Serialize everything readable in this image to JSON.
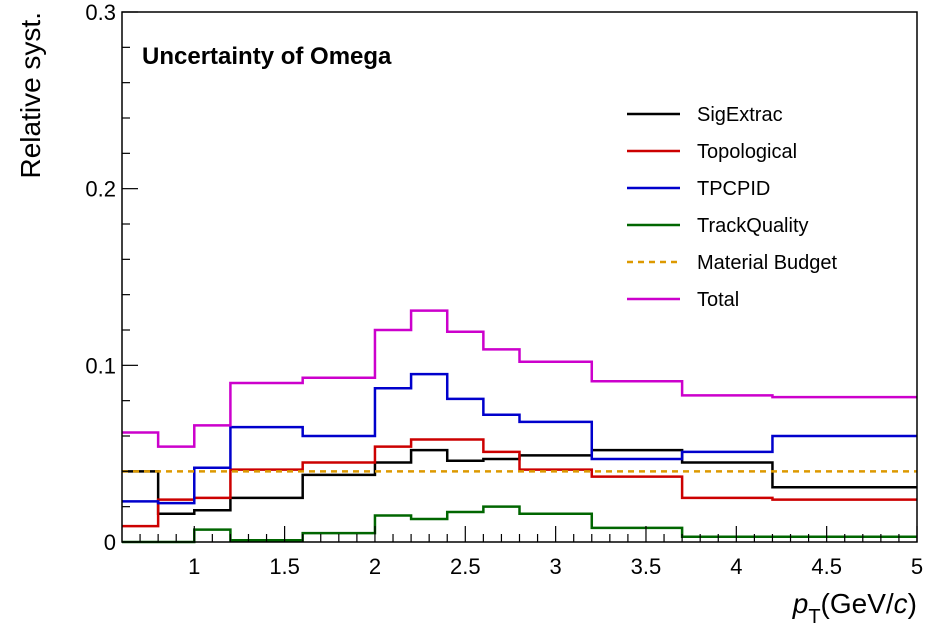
{
  "chart_data": {
    "type": "line",
    "style": "step-histogram",
    "title": "Uncertainty of Omega",
    "ylabel": "Relative syst.",
    "xlabel_main": "p",
    "xlabel_sub": "T",
    "xlabel_units_prefix": "(GeV/",
    "xlabel_units_italic": "c",
    "xlabel_units_suffix": ")",
    "xlim": [
      0.6,
      5.0
    ],
    "ylim": [
      0,
      0.3
    ],
    "x_ticks": [
      {
        "value": 1,
        "label": "1"
      },
      {
        "value": 1.5,
        "label": "1.5"
      },
      {
        "value": 2,
        "label": "2"
      },
      {
        "value": 2.5,
        "label": "2.5"
      },
      {
        "value": 3,
        "label": "3"
      },
      {
        "value": 3.5,
        "label": "3.5"
      },
      {
        "value": 4,
        "label": "4"
      },
      {
        "value": 4.5,
        "label": "4.5"
      },
      {
        "value": 5,
        "label": "5"
      }
    ],
    "y_ticks": [
      {
        "value": 0,
        "label": "0"
      },
      {
        "value": 0.1,
        "label": "0.1"
      },
      {
        "value": 0.2,
        "label": "0.2"
      },
      {
        "value": 0.3,
        "label": "0.3"
      }
    ],
    "bin_edges": [
      0.6,
      0.8,
      1.0,
      1.2,
      1.6,
      2.0,
      2.2,
      2.4,
      2.6,
      2.8,
      3.2,
      3.7,
      4.2,
      5.0
    ],
    "grid": false,
    "legend_position": "top-right",
    "series": [
      {
        "name": "SigExtrac",
        "color": "#000000",
        "dashed": false,
        "values": [
          0.04,
          0.016,
          0.018,
          0.025,
          0.038,
          0.045,
          0.052,
          0.046,
          0.047,
          0.049,
          0.052,
          0.045,
          0.031
        ]
      },
      {
        "name": "Topological",
        "color": "#cc0000",
        "dashed": false,
        "values": [
          0.009,
          0.024,
          0.025,
          0.041,
          0.045,
          0.054,
          0.058,
          0.058,
          0.051,
          0.041,
          0.037,
          0.025,
          0.024
        ]
      },
      {
        "name": "TPCPID",
        "color": "#0000cc",
        "dashed": false,
        "values": [
          0.023,
          0.022,
          0.042,
          0.065,
          0.06,
          0.087,
          0.095,
          0.081,
          0.072,
          0.068,
          0.047,
          0.051,
          0.06
        ]
      },
      {
        "name": "TrackQuality",
        "color": "#006600",
        "dashed": false,
        "values": [
          0.0,
          0.0,
          0.007,
          0.001,
          0.005,
          0.015,
          0.013,
          0.017,
          0.02,
          0.016,
          0.008,
          0.003,
          0.003
        ]
      },
      {
        "name": "Material Budget",
        "color": "#dd9900",
        "dashed": true,
        "values": [
          0.04,
          0.04,
          0.04,
          0.04,
          0.04,
          0.04,
          0.04,
          0.04,
          0.04,
          0.04,
          0.04,
          0.04,
          0.04
        ]
      },
      {
        "name": "Total",
        "color": "#cc00cc",
        "dashed": false,
        "values": [
          0.062,
          0.054,
          0.066,
          0.09,
          0.093,
          0.12,
          0.131,
          0.119,
          0.109,
          0.102,
          0.091,
          0.083,
          0.082
        ]
      }
    ]
  }
}
